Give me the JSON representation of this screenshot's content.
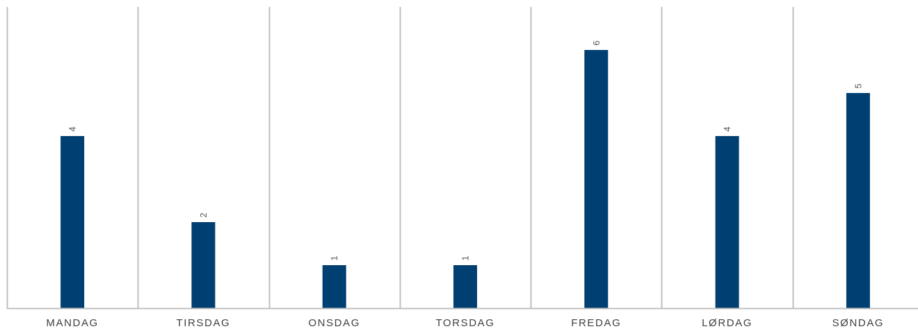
{
  "chart_data": {
    "type": "bar",
    "categories": [
      "MANDAG",
      "TIRSDAG",
      "ONSDAG",
      "TORSDAG",
      "FREDAG",
      "LØRDAG",
      "SØNDAG"
    ],
    "values": [
      4,
      2,
      1,
      1,
      6,
      4,
      5
    ],
    "data_labels": [
      "4",
      "2",
      "1",
      "1",
      "6",
      "4",
      "5"
    ],
    "data_label_orientation": "rotated",
    "ylim": [
      0,
      7
    ],
    "grid": false,
    "category_separators": true,
    "legend": "none",
    "colors": {
      "bar": "#003F72",
      "separator": "#BFBFBF",
      "axis": "#BFBFBF",
      "category_text": "#3F3F3F",
      "value_text": "#595959"
    }
  }
}
